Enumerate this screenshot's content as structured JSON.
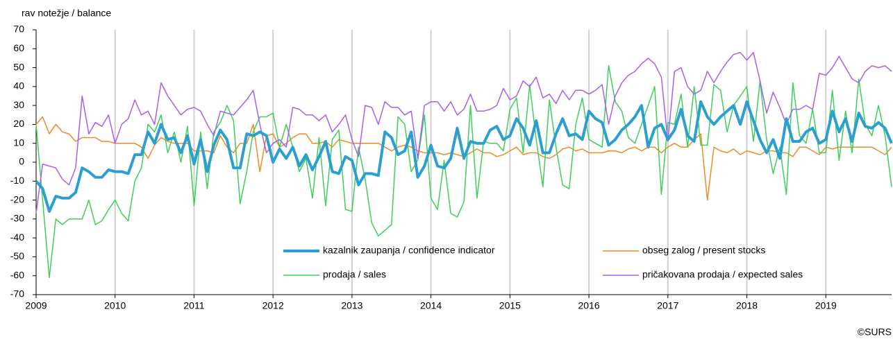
{
  "chart_data": {
    "type": "line",
    "y_label": "rav notežje / balance",
    "source": "©SURS",
    "xlim": [
      2009,
      2019.833
    ],
    "xticks": [
      2009,
      2010,
      2011,
      2012,
      2013,
      2014,
      2015,
      2016,
      2017,
      2018,
      2019
    ],
    "ylim": [
      -70,
      70
    ],
    "yticks": [
      -70,
      -60,
      -50,
      -40,
      -30,
      -20,
      -10,
      0,
      10,
      20,
      30,
      40,
      50,
      60,
      70
    ],
    "grid": "x",
    "x": [
      2009,
      2009.083,
      2009.167,
      2009.25,
      2009.333,
      2009.417,
      2009.5,
      2009.583,
      2009.667,
      2009.75,
      2009.833,
      2009.917,
      2010,
      2010.083,
      2010.167,
      2010.25,
      2010.333,
      2010.417,
      2010.5,
      2010.583,
      2010.667,
      2010.75,
      2010.833,
      2010.917,
      2011,
      2011.083,
      2011.167,
      2011.25,
      2011.333,
      2011.417,
      2011.5,
      2011.583,
      2011.667,
      2011.75,
      2011.833,
      2011.917,
      2012,
      2012.083,
      2012.167,
      2012.25,
      2012.333,
      2012.417,
      2012.5,
      2012.583,
      2012.667,
      2012.75,
      2012.833,
      2012.917,
      2013,
      2013.083,
      2013.167,
      2013.25,
      2013.333,
      2013.417,
      2013.5,
      2013.583,
      2013.667,
      2013.75,
      2013.833,
      2013.917,
      2014,
      2014.083,
      2014.167,
      2014.25,
      2014.333,
      2014.417,
      2014.5,
      2014.583,
      2014.667,
      2014.75,
      2014.833,
      2014.917,
      2015,
      2015.083,
      2015.167,
      2015.25,
      2015.333,
      2015.417,
      2015.5,
      2015.583,
      2015.667,
      2015.75,
      2015.833,
      2015.917,
      2016,
      2016.083,
      2016.167,
      2016.25,
      2016.333,
      2016.417,
      2016.5,
      2016.583,
      2016.667,
      2016.75,
      2016.833,
      2016.917,
      2017,
      2017.083,
      2017.167,
      2017.25,
      2017.333,
      2017.417,
      2017.5,
      2017.583,
      2017.667,
      2017.75,
      2017.833,
      2017.917,
      2018,
      2018.083,
      2018.167,
      2018.25,
      2018.333,
      2018.417,
      2018.5,
      2018.583,
      2018.667,
      2018.75,
      2018.833,
      2018.917,
      2019,
      2019.083,
      2019.167,
      2019.25,
      2019.333,
      2019.417,
      2019.5,
      2019.583,
      2019.667,
      2019.75,
      2019.833
    ],
    "series": [
      {
        "name": "obseg zalog / present stocks",
        "color": "#f08a24",
        "width": 1.5,
        "values": [
          20,
          24,
          15,
          20,
          16,
          15,
          11,
          13,
          13,
          13,
          11,
          11,
          10,
          10,
          10,
          10,
          8,
          2,
          9,
          13,
          11,
          10,
          10,
          10,
          6,
          6,
          6,
          5,
          14,
          8,
          5,
          10,
          10,
          20,
          -5,
          14,
          15,
          8,
          10,
          13,
          15,
          15,
          10,
          10,
          11,
          8,
          12,
          11,
          10,
          10,
          10,
          10,
          10,
          8,
          6,
          8,
          9,
          8,
          6,
          5,
          5,
          5,
          4,
          5,
          4,
          3,
          5,
          7,
          5,
          5,
          3,
          4,
          6,
          8,
          4,
          5,
          5,
          3,
          2,
          4,
          7,
          8,
          6,
          7,
          5,
          5,
          5,
          6,
          6,
          5,
          7,
          8,
          6,
          8,
          8,
          5,
          8,
          10,
          8,
          8,
          12,
          15,
          -20,
          8,
          6,
          5,
          7,
          4,
          6,
          5,
          4,
          6,
          6,
          5,
          5,
          3,
          8,
          8,
          6,
          4,
          8,
          7,
          8,
          8,
          8,
          8,
          8,
          8,
          6,
          4,
          8
        ]
      },
      {
        "name": "prodaja / sales",
        "color": "#3ecf5a",
        "width": 1.5,
        "values": [
          20,
          -20,
          -61,
          -30,
          -33,
          -30,
          -30,
          -30,
          -20,
          -33,
          -31,
          -25,
          -20,
          -27,
          -31,
          -10,
          -3,
          20,
          16,
          25,
          5,
          16,
          0,
          19,
          -23,
          16,
          -14,
          16,
          21,
          30,
          22,
          -22,
          -5,
          16,
          24,
          24,
          26,
          8,
          20,
          8,
          -5,
          2,
          -19,
          13,
          -23,
          12,
          17,
          -25,
          -26,
          8,
          -9,
          -32,
          -39,
          -36,
          -33,
          24,
          20,
          -5,
          1,
          25,
          -19,
          -25,
          1,
          -27,
          -29,
          -21,
          30,
          -19,
          11,
          10,
          10,
          6,
          28,
          34,
          5,
          41,
          12,
          -13,
          33,
          8,
          -12,
          -14,
          20,
          34,
          12,
          10,
          8,
          51,
          32,
          27,
          13,
          10,
          20,
          30,
          40,
          -17,
          21,
          20,
          36,
          8,
          40,
          9,
          9,
          41,
          38,
          16,
          30,
          35,
          40,
          11,
          43,
          12,
          -6,
          8,
          -17,
          42,
          14,
          10,
          28,
          5,
          5,
          38,
          1,
          27,
          5,
          44,
          20,
          14,
          30,
          14,
          -13
        ]
      },
      {
        "name": "pričakovana prodaja / expected sales",
        "color": "#a660f0",
        "width": 1.5,
        "values": [
          -27,
          -1,
          -2,
          -3,
          -9,
          -12,
          -3,
          35,
          15,
          21,
          19,
          25,
          10,
          20,
          23,
          33,
          25,
          27,
          20,
          42,
          35,
          30,
          25,
          28,
          29,
          27,
          20,
          14,
          27,
          26,
          25,
          29,
          33,
          38,
          20,
          5,
          10,
          12,
          8,
          29,
          28,
          25,
          25,
          22,
          25,
          16,
          20,
          25,
          12,
          3,
          30,
          29,
          20,
          32,
          29,
          29,
          25,
          27,
          2,
          30,
          32,
          32,
          27,
          32,
          25,
          28,
          36,
          27,
          27,
          28,
          30,
          39,
          33,
          35,
          43,
          40,
          45,
          34,
          36,
          31,
          38,
          33,
          38,
          38,
          36,
          38,
          41,
          20,
          35,
          42,
          46,
          48,
          52,
          55,
          52,
          45,
          11,
          48,
          50,
          40,
          36,
          38,
          48,
          42,
          48,
          53,
          57,
          58,
          54,
          58,
          43,
          26,
          37,
          29,
          20,
          28,
          28,
          30,
          28,
          47,
          46,
          50,
          56,
          50,
          44,
          42,
          48,
          51,
          50,
          51,
          48
        ]
      },
      {
        "name": "kazalnik zaupanja / confidence indicator",
        "color": "#2a9fd0",
        "width": 4,
        "values": [
          -10,
          -14,
          -26,
          -18,
          -19,
          -19,
          -16,
          -3,
          -5,
          -8,
          -8,
          -4,
          -5,
          -5,
          -6,
          4,
          4,
          16,
          10,
          20,
          12,
          13,
          5,
          14,
          -1,
          12,
          -5,
          9,
          17,
          12,
          -3,
          -3,
          15,
          14,
          16,
          14,
          0,
          7,
          2,
          8,
          -2,
          4,
          -4,
          3,
          11,
          -5,
          -6,
          3,
          1,
          -12,
          -6,
          -6,
          -7,
          16,
          13,
          4,
          6,
          16,
          -8,
          -2,
          9,
          -2,
          -3,
          2,
          18,
          2,
          11,
          10,
          10,
          17,
          19,
          12,
          14,
          23,
          18,
          9,
          22,
          5,
          5,
          15,
          23,
          14,
          15,
          12,
          27,
          23,
          21,
          9,
          12,
          17,
          20,
          24,
          30,
          8,
          18,
          20,
          12,
          17,
          28,
          14,
          11,
          32,
          24,
          20,
          24,
          27,
          30,
          20,
          32,
          22,
          12,
          5,
          12,
          2,
          23,
          11,
          11,
          16,
          18,
          10,
          12,
          27,
          16,
          23,
          11,
          26,
          19,
          18,
          21,
          18,
          10
        ]
      }
    ]
  }
}
